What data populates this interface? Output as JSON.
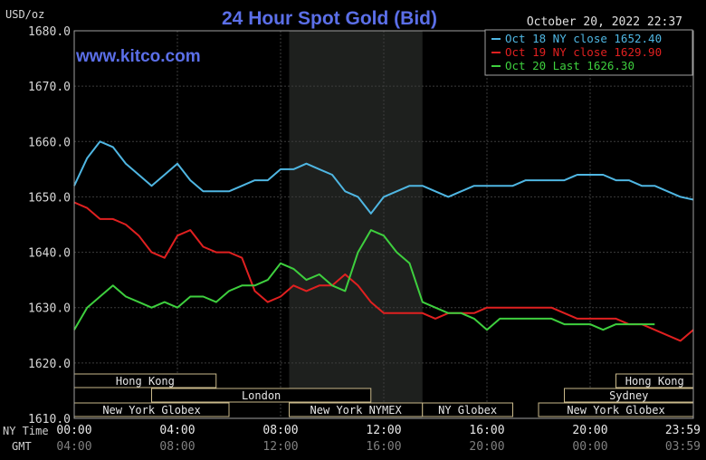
{
  "title": "24 Hour Spot Gold (Bid)",
  "timestamp": "October 20, 2022 22:37",
  "website": "www.kitco.com",
  "unit": "USD/oz",
  "time_axis_labels": {
    "ny": "NY Time",
    "gmt": "GMT"
  },
  "legend": [
    {
      "label": "Oct 18 NY close 1652.40",
      "color": "#4fb6e2"
    },
    {
      "label": "Oct 19 NY close 1629.90",
      "color": "#e02020"
    },
    {
      "label": "Oct 20 Last 1626.30",
      "color": "#3ecf3e"
    }
  ],
  "sessions": {
    "rows": [
      [
        {
          "label": "Hong Kong",
          "start": "00:00",
          "end": "05:30"
        },
        {
          "label": "Hong Kong",
          "start": "21:00",
          "end": "23:59"
        }
      ],
      [
        {
          "label": "London",
          "start": "03:00",
          "end": "11:30"
        },
        {
          "label": "Sydney",
          "start": "19:00",
          "end": "23:59"
        }
      ],
      [
        {
          "label": "New York Globex",
          "start": "00:00",
          "end": "06:00"
        },
        {
          "label": "New York NYMEX",
          "start": "08:20",
          "end": "13:30"
        },
        {
          "label": "NY Globex",
          "start": "13:30",
          "end": "17:00"
        },
        {
          "label": "New York Globex",
          "start": "18:00",
          "end": "23:59"
        }
      ]
    ]
  },
  "chart_data": {
    "type": "line",
    "ylabel": "USD/oz",
    "ylim": [
      1610,
      1680
    ],
    "yticks": [
      "1680.0",
      "1670.0",
      "1660.0",
      "1650.0",
      "1640.0",
      "1630.0",
      "1620.0",
      "1610.0"
    ],
    "xlim_hours": [
      0,
      24
    ],
    "xticks_ny": [
      "00:00",
      "04:00",
      "08:00",
      "12:00",
      "16:00",
      "20:00",
      "23:59"
    ],
    "xticks_gmt": [
      "04:00",
      "08:00",
      "12:00",
      "16:00",
      "20:00",
      "00:00",
      "03:59"
    ],
    "shaded_session": {
      "start": "08:20",
      "end": "13:30"
    },
    "grid": true,
    "legend_position": "top-right",
    "series": [
      {
        "name": "Oct 18 NY close 1652.40",
        "color": "#4fb6e2",
        "x": [
          "00:00",
          "00:30",
          "01:00",
          "01:30",
          "02:00",
          "02:30",
          "03:00",
          "03:30",
          "04:00",
          "04:30",
          "05:00",
          "05:30",
          "06:00",
          "06:30",
          "07:00",
          "07:30",
          "08:00",
          "08:30",
          "09:00",
          "09:30",
          "10:00",
          "10:30",
          "11:00",
          "11:30",
          "12:00",
          "12:30",
          "13:00",
          "13:30",
          "14:00",
          "14:30",
          "15:00",
          "15:30",
          "16:00",
          "16:30",
          "17:00",
          "17:30",
          "18:00",
          "18:30",
          "19:00",
          "19:30",
          "20:00",
          "20:30",
          "21:00",
          "21:30",
          "22:00",
          "22:30",
          "23:00",
          "23:30",
          "23:59"
        ],
        "y": [
          1652,
          1657,
          1660,
          1659,
          1656,
          1654,
          1652,
          1654,
          1656,
          1653,
          1651,
          1651,
          1651,
          1652,
          1653,
          1653,
          1655,
          1655,
          1656,
          1655,
          1654,
          1651,
          1650,
          1647,
          1650,
          1651,
          1652,
          1652,
          1651,
          1650,
          1651,
          1652,
          1652,
          1652,
          1652,
          1653,
          1653,
          1653,
          1653,
          1654,
          1654,
          1654,
          1653,
          1653,
          1652,
          1652,
          1651,
          1650,
          1649.5
        ]
      },
      {
        "name": "Oct 19 NY close 1629.90",
        "color": "#e02020",
        "x": [
          "00:00",
          "00:30",
          "01:00",
          "01:30",
          "02:00",
          "02:30",
          "03:00",
          "03:30",
          "04:00",
          "04:30",
          "05:00",
          "05:30",
          "06:00",
          "06:30",
          "07:00",
          "07:30",
          "08:00",
          "08:30",
          "09:00",
          "09:30",
          "10:00",
          "10:30",
          "11:00",
          "11:30",
          "12:00",
          "12:30",
          "13:00",
          "13:30",
          "14:00",
          "14:30",
          "15:00",
          "15:30",
          "16:00",
          "16:30",
          "17:00",
          "17:30",
          "18:00",
          "18:30",
          "19:00",
          "19:30",
          "20:00",
          "20:30",
          "21:00",
          "21:30",
          "22:00",
          "22:30",
          "23:00",
          "23:30",
          "23:59"
        ],
        "y": [
          1649,
          1648,
          1646,
          1646,
          1645,
          1643,
          1640,
          1639,
          1643,
          1644,
          1641,
          1640,
          1640,
          1639,
          1633,
          1631,
          1632,
          1634,
          1633,
          1634,
          1634,
          1636,
          1634,
          1631,
          1629,
          1629,
          1629,
          1629,
          1628,
          1629,
          1629,
          1629,
          1630,
          1630,
          1630,
          1630,
          1630,
          1630,
          1629,
          1628,
          1628,
          1628,
          1628,
          1627,
          1627,
          1626,
          1625,
          1624,
          1626
        ]
      },
      {
        "name": "Oct 20 Last 1626.30",
        "color": "#3ecf3e",
        "x": [
          "00:00",
          "00:30",
          "01:00",
          "01:30",
          "02:00",
          "02:30",
          "03:00",
          "03:30",
          "04:00",
          "04:30",
          "05:00",
          "05:30",
          "06:00",
          "06:30",
          "07:00",
          "07:30",
          "08:00",
          "08:30",
          "09:00",
          "09:30",
          "10:00",
          "10:30",
          "11:00",
          "11:30",
          "12:00",
          "12:30",
          "13:00",
          "13:30",
          "14:00",
          "14:30",
          "15:00",
          "15:30",
          "16:00",
          "16:30",
          "17:00",
          "17:30",
          "18:00",
          "18:30",
          "19:00",
          "19:30",
          "20:00",
          "20:30",
          "21:00",
          "21:30",
          "22:00",
          "22:30"
        ],
        "y": [
          1626,
          1630,
          1632,
          1634,
          1632,
          1631,
          1630,
          1631,
          1630,
          1632,
          1632,
          1631,
          1633,
          1634,
          1634,
          1635,
          1638,
          1637,
          1635,
          1636,
          1634,
          1633,
          1640,
          1644,
          1643,
          1640,
          1638,
          1631,
          1630,
          1629,
          1629,
          1628,
          1626,
          1628,
          1628,
          1628,
          1628,
          1628,
          1627,
          1627,
          1627,
          1626,
          1627,
          1627,
          1627,
          1627
        ]
      }
    ]
  }
}
